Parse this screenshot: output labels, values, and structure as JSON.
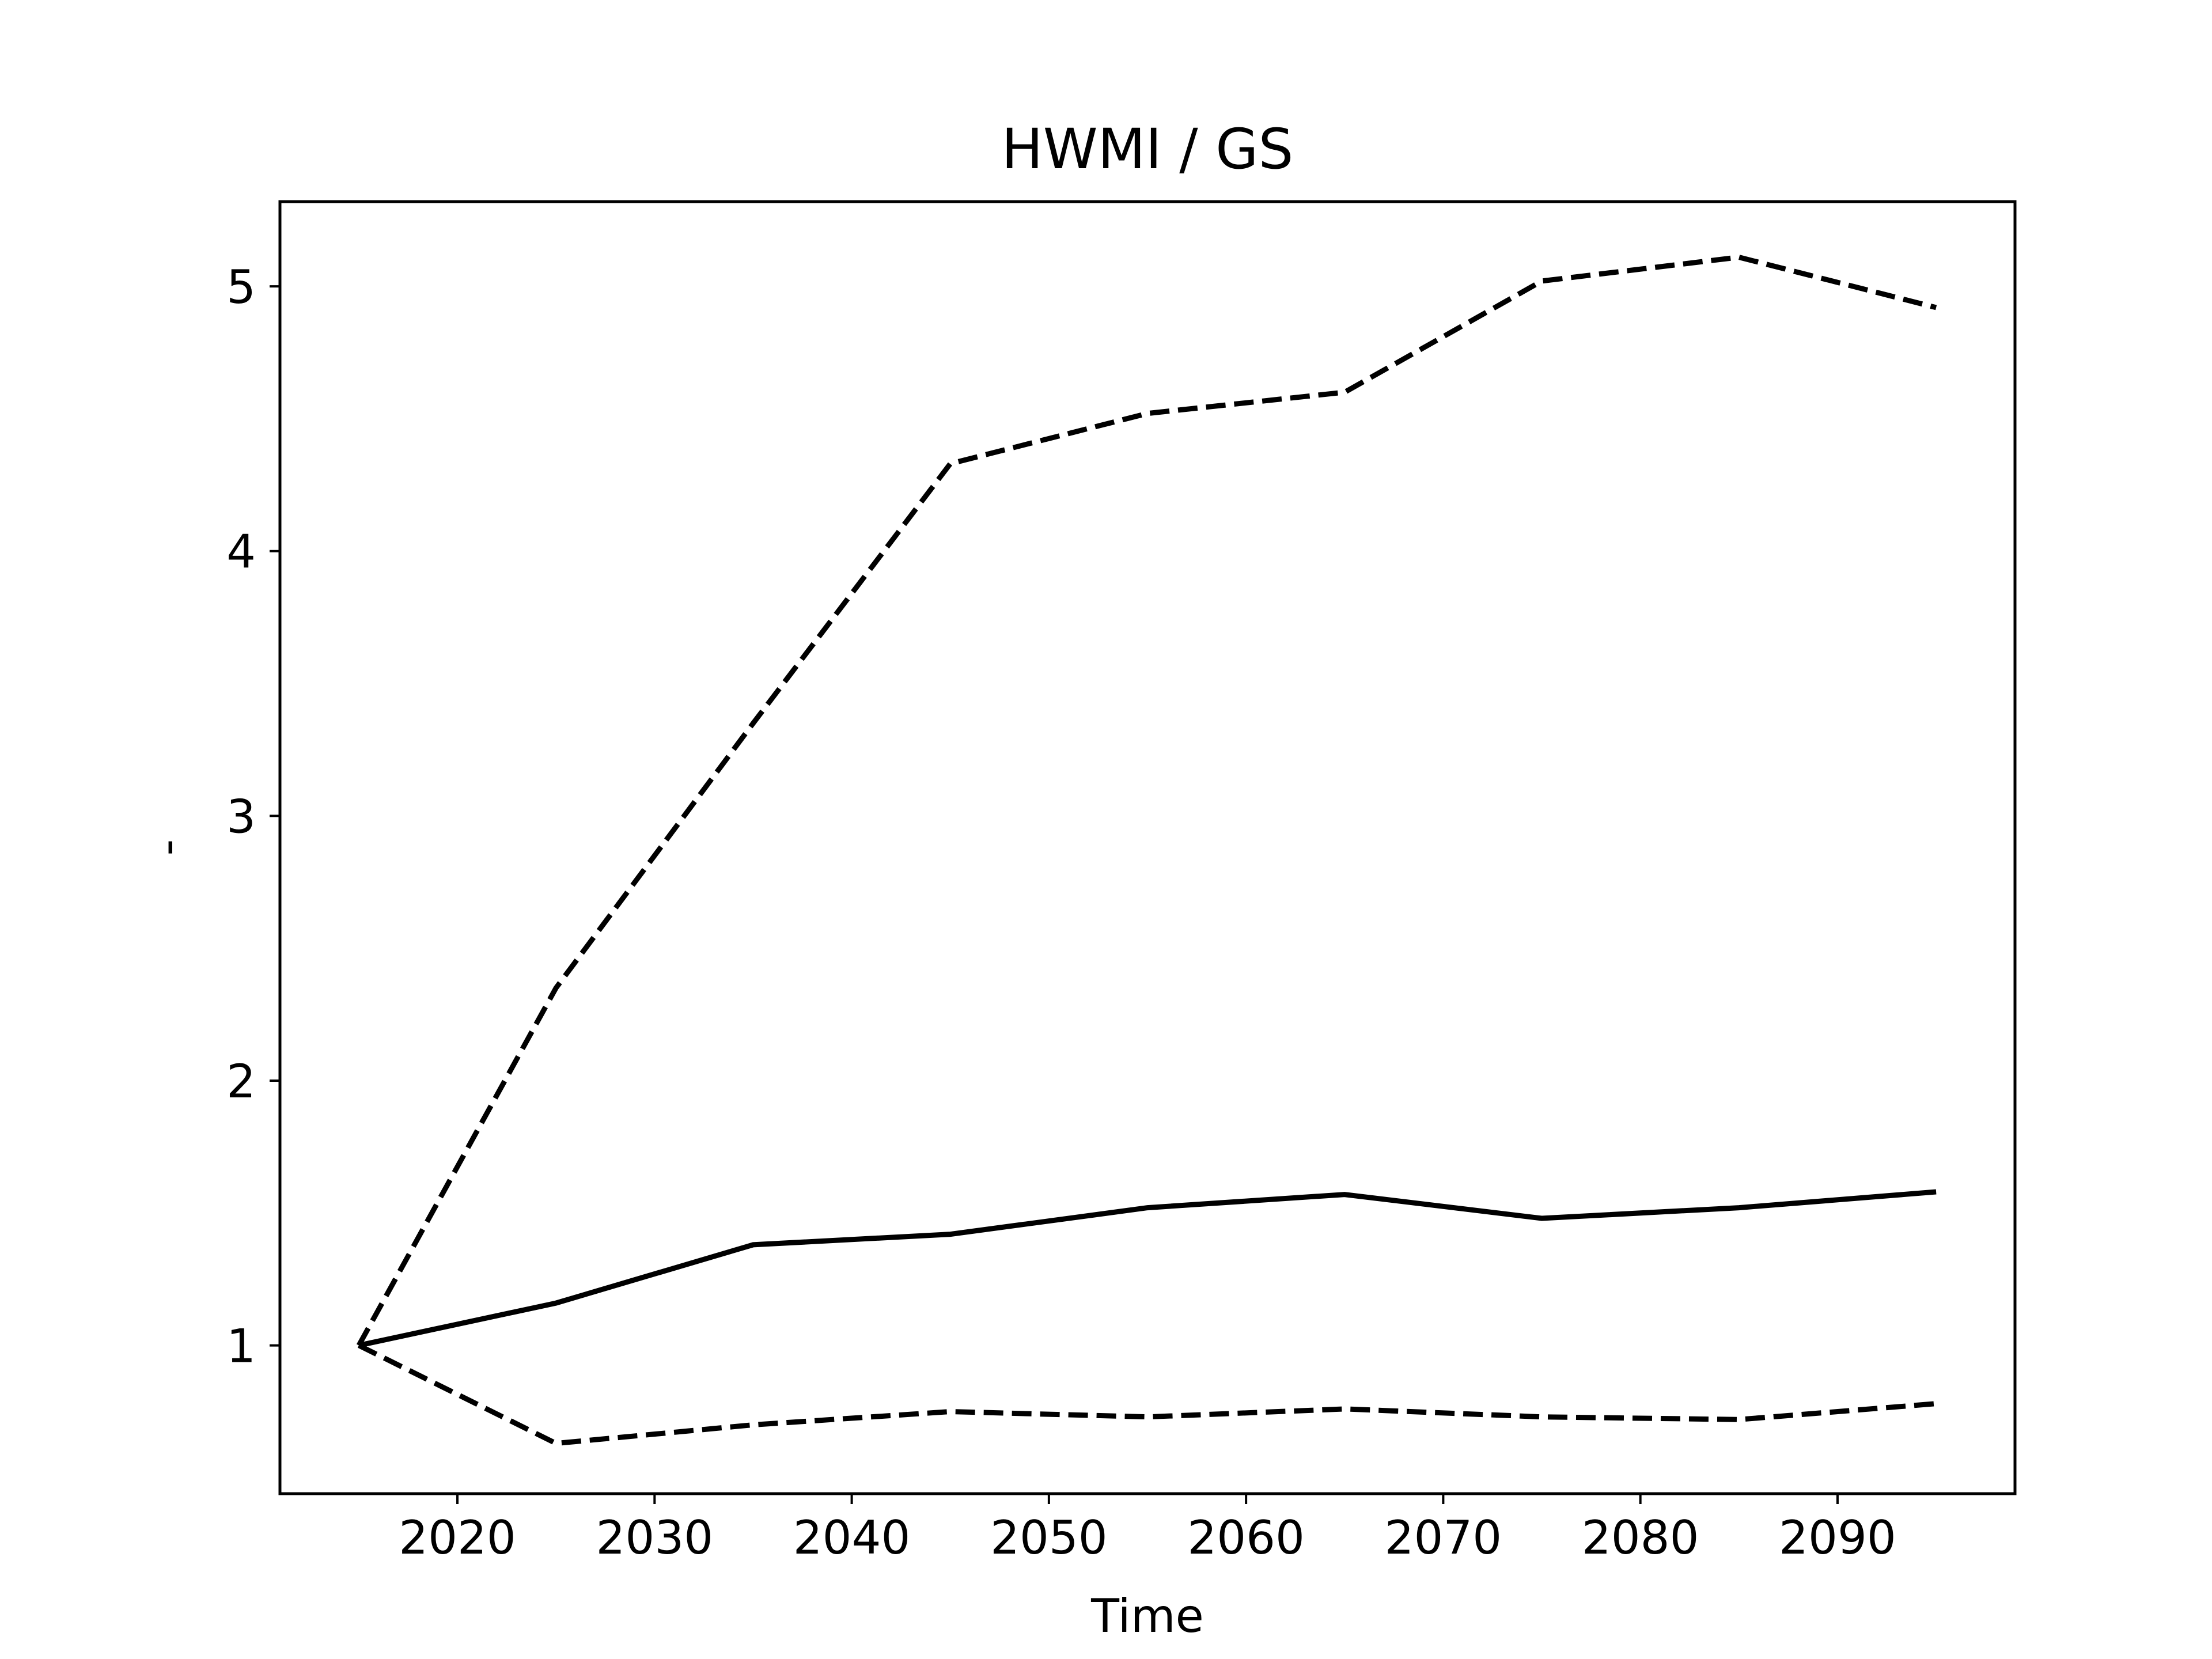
{
  "chart_data": {
    "type": "line",
    "title": "HWMI / GS",
    "xlabel": "Time",
    "ylabel": "-",
    "xlim": [
      2011,
      2099
    ],
    "ylim": [
      0.44,
      5.32
    ],
    "xticks": [
      2020,
      2030,
      2040,
      2050,
      2060,
      2070,
      2080,
      2090
    ],
    "yticks": [
      1,
      2,
      3,
      4,
      5
    ],
    "grid": false,
    "legend": "none",
    "x": [
      2015,
      2025,
      2035,
      2045,
      2055,
      2065,
      2075,
      2085,
      2095
    ],
    "series": [
      {
        "style": "solid",
        "color": "#000000",
        "values": [
          1.0,
          1.16,
          1.38,
          1.42,
          1.52,
          1.57,
          1.48,
          1.52,
          1.58
        ]
      },
      {
        "style": "dashed",
        "color": "#000000",
        "values": [
          1.0,
          2.35,
          3.35,
          4.33,
          4.52,
          4.6,
          5.02,
          5.11,
          4.92
        ]
      },
      {
        "style": "dashed",
        "color": "#000000",
        "values": [
          1.0,
          0.63,
          0.7,
          0.75,
          0.73,
          0.76,
          0.73,
          0.72,
          0.78
        ]
      }
    ]
  }
}
